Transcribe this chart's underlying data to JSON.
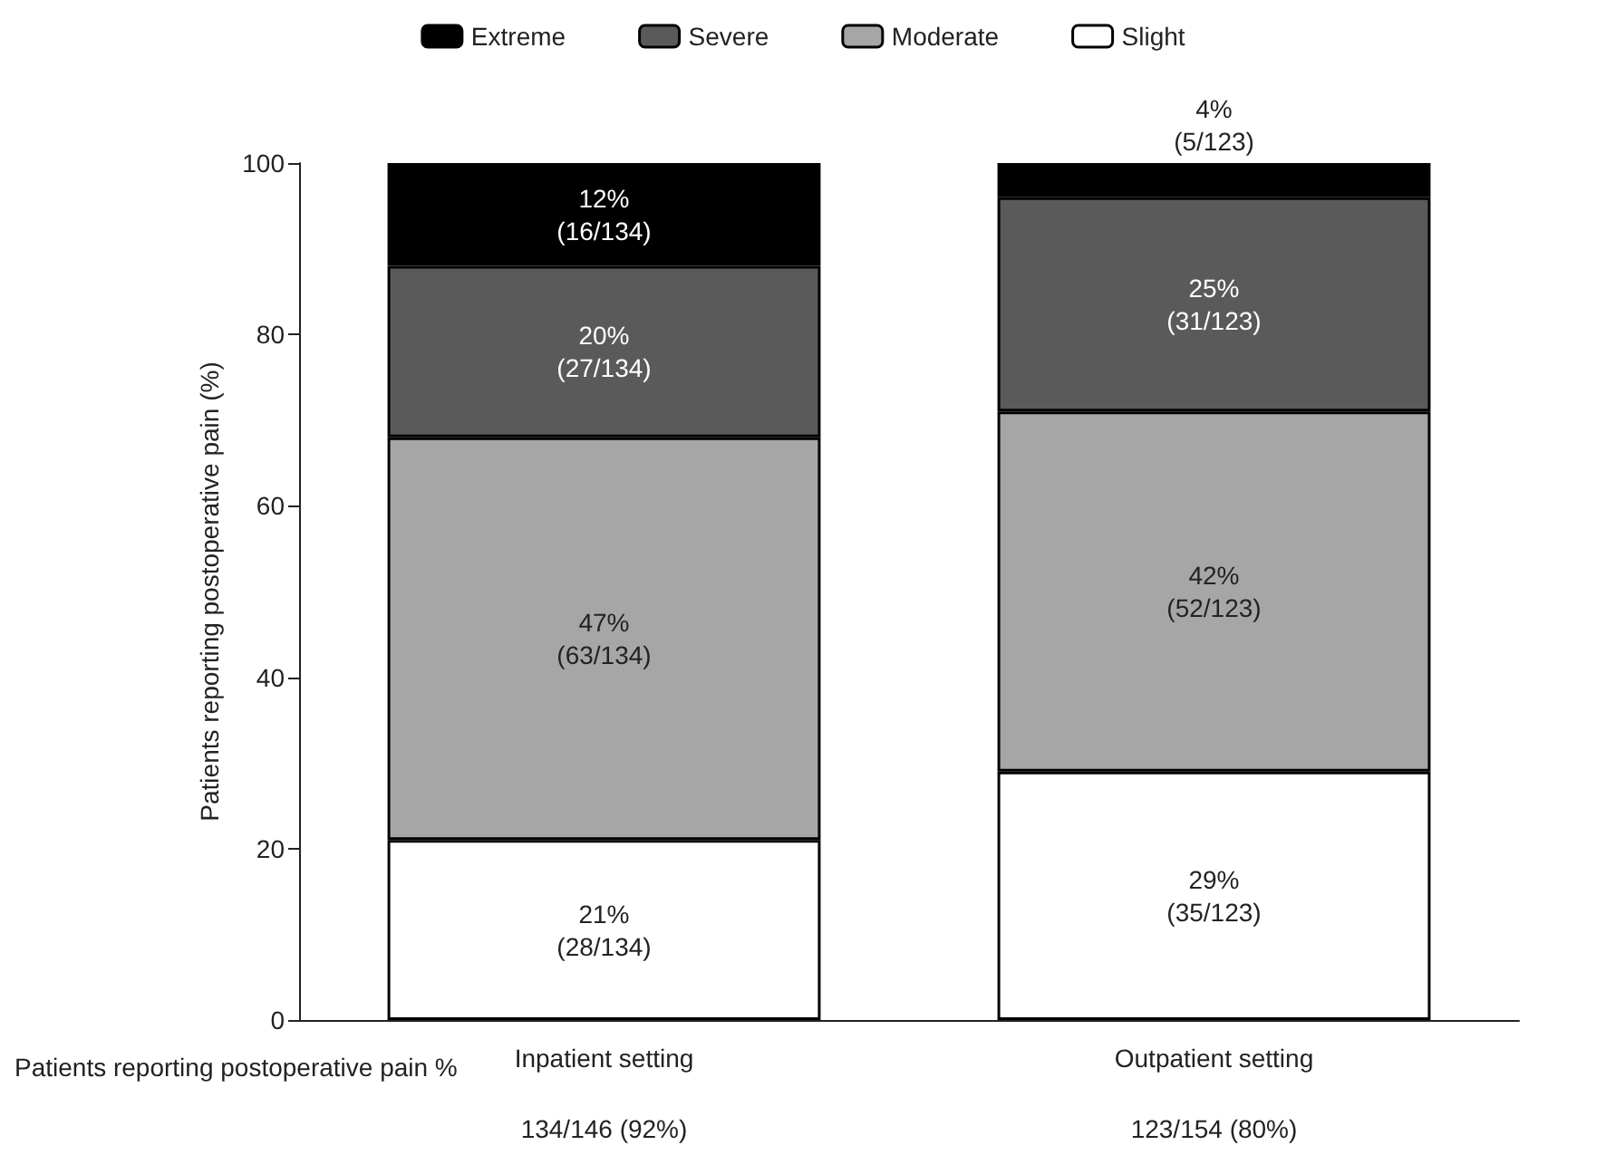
{
  "chart_data": {
    "type": "bar",
    "stacked": true,
    "ylabel": "Patients reporting postoperative pain (%)",
    "categories": [
      "Inpatient setting",
      "Outpatient setting"
    ],
    "series": [
      {
        "name": "Slight",
        "color": "#ffffff",
        "values": [
          21,
          29
        ],
        "value_labels": [
          "21%\n(28/134)",
          "29%\n(35/123)"
        ]
      },
      {
        "name": "Moderate",
        "color": "#a6a6a6",
        "values": [
          47,
          42
        ],
        "value_labels": [
          "47%\n(63/134)",
          "42%\n(52/123)"
        ]
      },
      {
        "name": "Severe",
        "color": "#5a5a5a",
        "values": [
          20,
          25
        ],
        "value_labels": [
          "20%\n(27/134)",
          "25%\n(31/123)"
        ]
      },
      {
        "name": "Extreme",
        "color": "#000000",
        "values": [
          12,
          4
        ],
        "value_labels": [
          "12%\n(16/134)",
          "4%\n(5/123)"
        ]
      }
    ],
    "ylim": [
      0,
      100
    ],
    "yticks": [
      0,
      20,
      40,
      60,
      80,
      100
    ],
    "grid": false,
    "legend": "top",
    "annotations": [
      "Patients reporting postoperative pain %",
      "134/146 (92%)",
      "123/154 (80%)"
    ]
  }
}
